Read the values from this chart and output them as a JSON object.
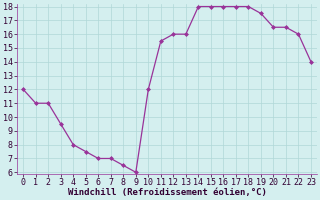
{
  "x": [
    0,
    1,
    2,
    3,
    4,
    5,
    6,
    7,
    8,
    9,
    10,
    11,
    12,
    13,
    14,
    15,
    16,
    17,
    18,
    19,
    20,
    21,
    22,
    23
  ],
  "y": [
    12,
    11,
    11,
    9.5,
    8,
    7.5,
    7,
    7,
    6.5,
    6,
    12,
    15.5,
    16,
    16,
    18,
    18,
    18,
    18,
    18,
    17.5,
    16.5,
    16.5,
    16,
    14
  ],
  "line_color": "#993399",
  "marker": "D",
  "marker_size": 2,
  "bg_color": "#d4efef",
  "grid_color": "#b0d8d8",
  "xlabel": "Windchill (Refroidissement éolien,°C)",
  "ylim_min": 6,
  "ylim_max": 18,
  "xlim_min": -0.5,
  "xlim_max": 23.5,
  "yticks": [
    6,
    7,
    8,
    9,
    10,
    11,
    12,
    13,
    14,
    15,
    16,
    17,
    18
  ],
  "xticks": [
    0,
    1,
    2,
    3,
    4,
    5,
    6,
    7,
    8,
    9,
    10,
    11,
    12,
    13,
    14,
    15,
    16,
    17,
    18,
    19,
    20,
    21,
    22,
    23
  ],
  "xlabel_fontsize": 6.5,
  "tick_fontsize": 6,
  "line_width": 0.9,
  "spine_color": "#993399"
}
